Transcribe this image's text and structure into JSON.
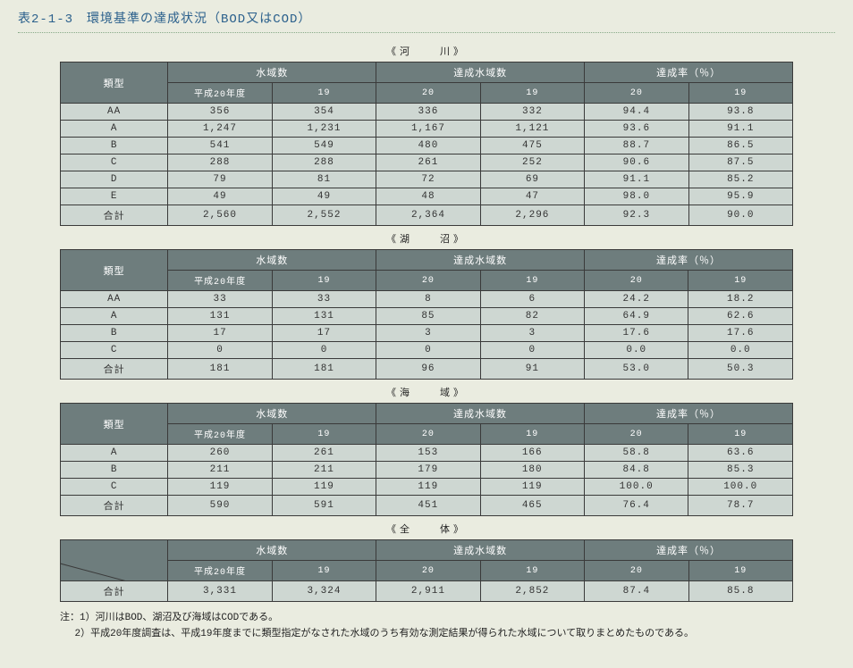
{
  "title": "表2-1-3　環境基準の達成状況（BOD又はCOD）",
  "captions": {
    "rivers": "《河　　川》",
    "lakes": "《湖　　沼》",
    "sea": "《海　　域》",
    "all": "《全　　体》"
  },
  "headers": {
    "type": "類型",
    "areas": "水域数",
    "achieved": "達成水域数",
    "rate": "達成率（％）",
    "y20": "平成20年度",
    "y19": "19",
    "c20": "20",
    "c19": "19"
  },
  "rivers": [
    {
      "t": "AA",
      "a20": "356",
      "a19": "354",
      "d20": "336",
      "d19": "332",
      "r20": "94.4",
      "r19": "93.8"
    },
    {
      "t": "A",
      "a20": "1,247",
      "a19": "1,231",
      "d20": "1,167",
      "d19": "1,121",
      "r20": "93.6",
      "r19": "91.1"
    },
    {
      "t": "B",
      "a20": "541",
      "a19": "549",
      "d20": "480",
      "d19": "475",
      "r20": "88.7",
      "r19": "86.5"
    },
    {
      "t": "C",
      "a20": "288",
      "a19": "288",
      "d20": "261",
      "d19": "252",
      "r20": "90.6",
      "r19": "87.5"
    },
    {
      "t": "D",
      "a20": "79",
      "a19": "81",
      "d20": "72",
      "d19": "69",
      "r20": "91.1",
      "r19": "85.2"
    },
    {
      "t": "E",
      "a20": "49",
      "a19": "49",
      "d20": "48",
      "d19": "47",
      "r20": "98.0",
      "r19": "95.9"
    },
    {
      "t": "合計",
      "a20": "2,560",
      "a19": "2,552",
      "d20": "2,364",
      "d19": "2,296",
      "r20": "92.3",
      "r19": "90.0"
    }
  ],
  "lakes": [
    {
      "t": "AA",
      "a20": "33",
      "a19": "33",
      "d20": "8",
      "d19": "6",
      "r20": "24.2",
      "r19": "18.2"
    },
    {
      "t": "A",
      "a20": "131",
      "a19": "131",
      "d20": "85",
      "d19": "82",
      "r20": "64.9",
      "r19": "62.6"
    },
    {
      "t": "B",
      "a20": "17",
      "a19": "17",
      "d20": "3",
      "d19": "3",
      "r20": "17.6",
      "r19": "17.6"
    },
    {
      "t": "C",
      "a20": "0",
      "a19": "0",
      "d20": "0",
      "d19": "0",
      "r20": "0.0",
      "r19": "0.0"
    },
    {
      "t": "合計",
      "a20": "181",
      "a19": "181",
      "d20": "96",
      "d19": "91",
      "r20": "53.0",
      "r19": "50.3"
    }
  ],
  "sea": [
    {
      "t": "A",
      "a20": "260",
      "a19": "261",
      "d20": "153",
      "d19": "166",
      "r20": "58.8",
      "r19": "63.6"
    },
    {
      "t": "B",
      "a20": "211",
      "a19": "211",
      "d20": "179",
      "d19": "180",
      "r20": "84.8",
      "r19": "85.3"
    },
    {
      "t": "C",
      "a20": "119",
      "a19": "119",
      "d20": "119",
      "d19": "119",
      "r20": "100.0",
      "r19": "100.0"
    },
    {
      "t": "合計",
      "a20": "590",
      "a19": "591",
      "d20": "451",
      "d19": "465",
      "r20": "76.4",
      "r19": "78.7"
    }
  ],
  "all": [
    {
      "t": "合計",
      "a20": "3,331",
      "a19": "3,324",
      "d20": "2,911",
      "d19": "2,852",
      "r20": "87.4",
      "r19": "85.8"
    }
  ],
  "notes": {
    "lead": "注：1）河川はBOD、湖沼及び海域はCODである。",
    "n2": "2）平成20年度調査は、平成19年度までに類型指定がなされた水域のうち有効な測定結果が得られた水域について取りまとめたものである。"
  }
}
